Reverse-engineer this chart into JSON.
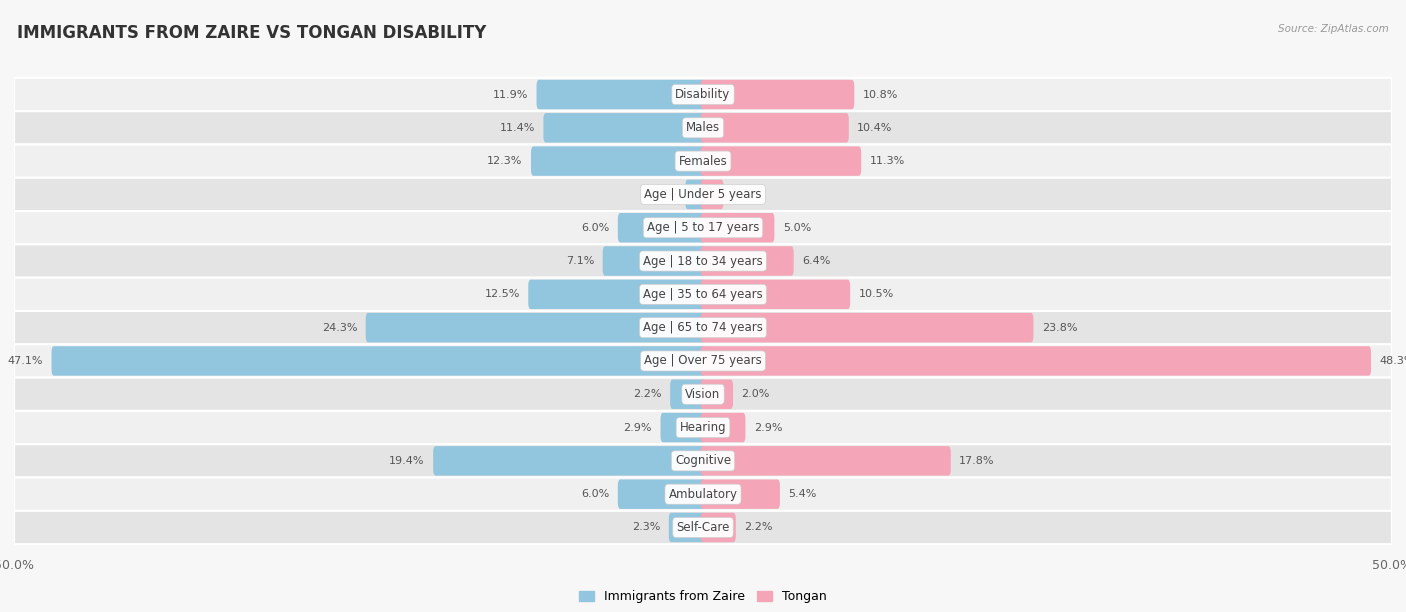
{
  "title": "IMMIGRANTS FROM ZAIRE VS TONGAN DISABILITY",
  "source": "Source: ZipAtlas.com",
  "categories": [
    "Disability",
    "Males",
    "Females",
    "Age | Under 5 years",
    "Age | 5 to 17 years",
    "Age | 18 to 34 years",
    "Age | 35 to 64 years",
    "Age | 65 to 74 years",
    "Age | Over 75 years",
    "Vision",
    "Hearing",
    "Cognitive",
    "Ambulatory",
    "Self-Care"
  ],
  "left_values": [
    11.9,
    11.4,
    12.3,
    1.1,
    6.0,
    7.1,
    12.5,
    24.3,
    47.1,
    2.2,
    2.9,
    19.4,
    6.0,
    2.3
  ],
  "right_values": [
    10.8,
    10.4,
    11.3,
    1.3,
    5.0,
    6.4,
    10.5,
    23.8,
    48.3,
    2.0,
    2.9,
    17.8,
    5.4,
    2.2
  ],
  "left_color": "#92C5DE",
  "right_color": "#F4A6B8",
  "left_label": "Immigrants from Zaire",
  "right_label": "Tongan",
  "max_value": 50.0,
  "bg_row_light": "#f0f0f0",
  "bg_row_dark": "#e4e4e4",
  "fig_bg": "#f7f7f7",
  "title_fontsize": 12,
  "label_fontsize": 8.5,
  "value_fontsize": 8,
  "axis_fontsize": 9
}
